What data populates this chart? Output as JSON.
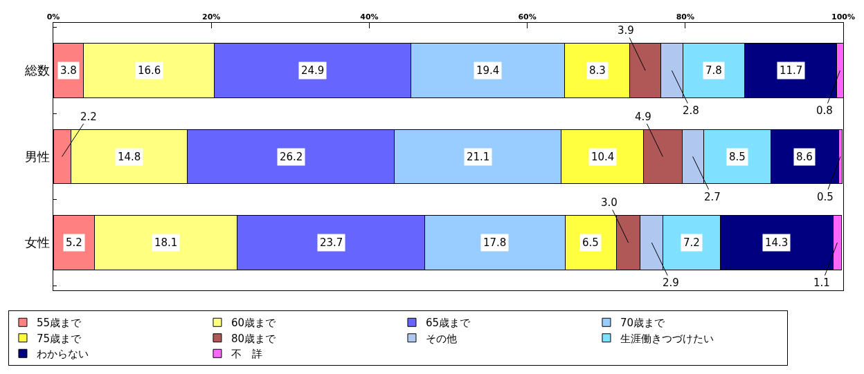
{
  "chart_data": {
    "type": "bar",
    "orientation": "horizontal",
    "stacked": true,
    "categories": [
      "総数",
      "男性",
      "女性"
    ],
    "xlim": [
      0,
      100
    ],
    "xticks": [
      {
        "value": 0,
        "label": "0%"
      },
      {
        "value": 20,
        "label": "20%"
      },
      {
        "value": 40,
        "label": "40%"
      },
      {
        "value": 60,
        "label": "60%"
      },
      {
        "value": 80,
        "label": "80%"
      },
      {
        "value": 100,
        "label": "100%"
      }
    ],
    "legend": "bottom",
    "series": [
      {
        "name": "55歳まで",
        "color": "#ff8080",
        "values": [
          3.8,
          2.2,
          5.2
        ],
        "value_labels": [
          "3.8",
          "2.2",
          "5.2"
        ]
      },
      {
        "name": "60歳まで",
        "color": "#ffff80",
        "values": [
          16.6,
          14.8,
          18.1
        ],
        "value_labels": [
          "16.6",
          "14.8",
          "18.1"
        ]
      },
      {
        "name": "65歳まで",
        "color": "#6666ff",
        "values": [
          24.9,
          26.2,
          23.7
        ],
        "value_labels": [
          "24.9",
          "26.2",
          "23.7"
        ]
      },
      {
        "name": "70歳まで",
        "color": "#99ccff",
        "values": [
          19.4,
          21.1,
          17.8
        ],
        "value_labels": [
          "19.4",
          "21.1",
          "17.8"
        ]
      },
      {
        "name": "75歳まで",
        "color": "#ffff40",
        "values": [
          8.3,
          10.4,
          6.5
        ],
        "value_labels": [
          "8.3",
          "10.4",
          "6.5"
        ]
      },
      {
        "name": "80歳まで",
        "color": "#b05858",
        "values": [
          3.9,
          4.9,
          3.0
        ],
        "value_labels": [
          "3.9",
          "4.9",
          "3.0"
        ]
      },
      {
        "name": "その他",
        "color": "#b0c8f0",
        "values": [
          2.8,
          2.7,
          2.9
        ],
        "value_labels": [
          "2.8",
          "2.7",
          "2.9"
        ]
      },
      {
        "name": "生涯働きつづけたい",
        "color": "#80e0ff",
        "values": [
          7.8,
          8.5,
          7.2
        ],
        "value_labels": [
          "7.8",
          "8.5",
          "7.2"
        ]
      },
      {
        "name": "わからない",
        "color": "#000080",
        "values": [
          11.7,
          8.6,
          14.3
        ],
        "value_labels": [
          "11.7",
          "8.6",
          "14.3"
        ]
      },
      {
        "name": "不　詳",
        "color": "#ff66ff",
        "values": [
          0.8,
          0.5,
          1.1
        ],
        "value_labels": [
          "0.8",
          "0.5",
          "1.1"
        ]
      }
    ]
  }
}
